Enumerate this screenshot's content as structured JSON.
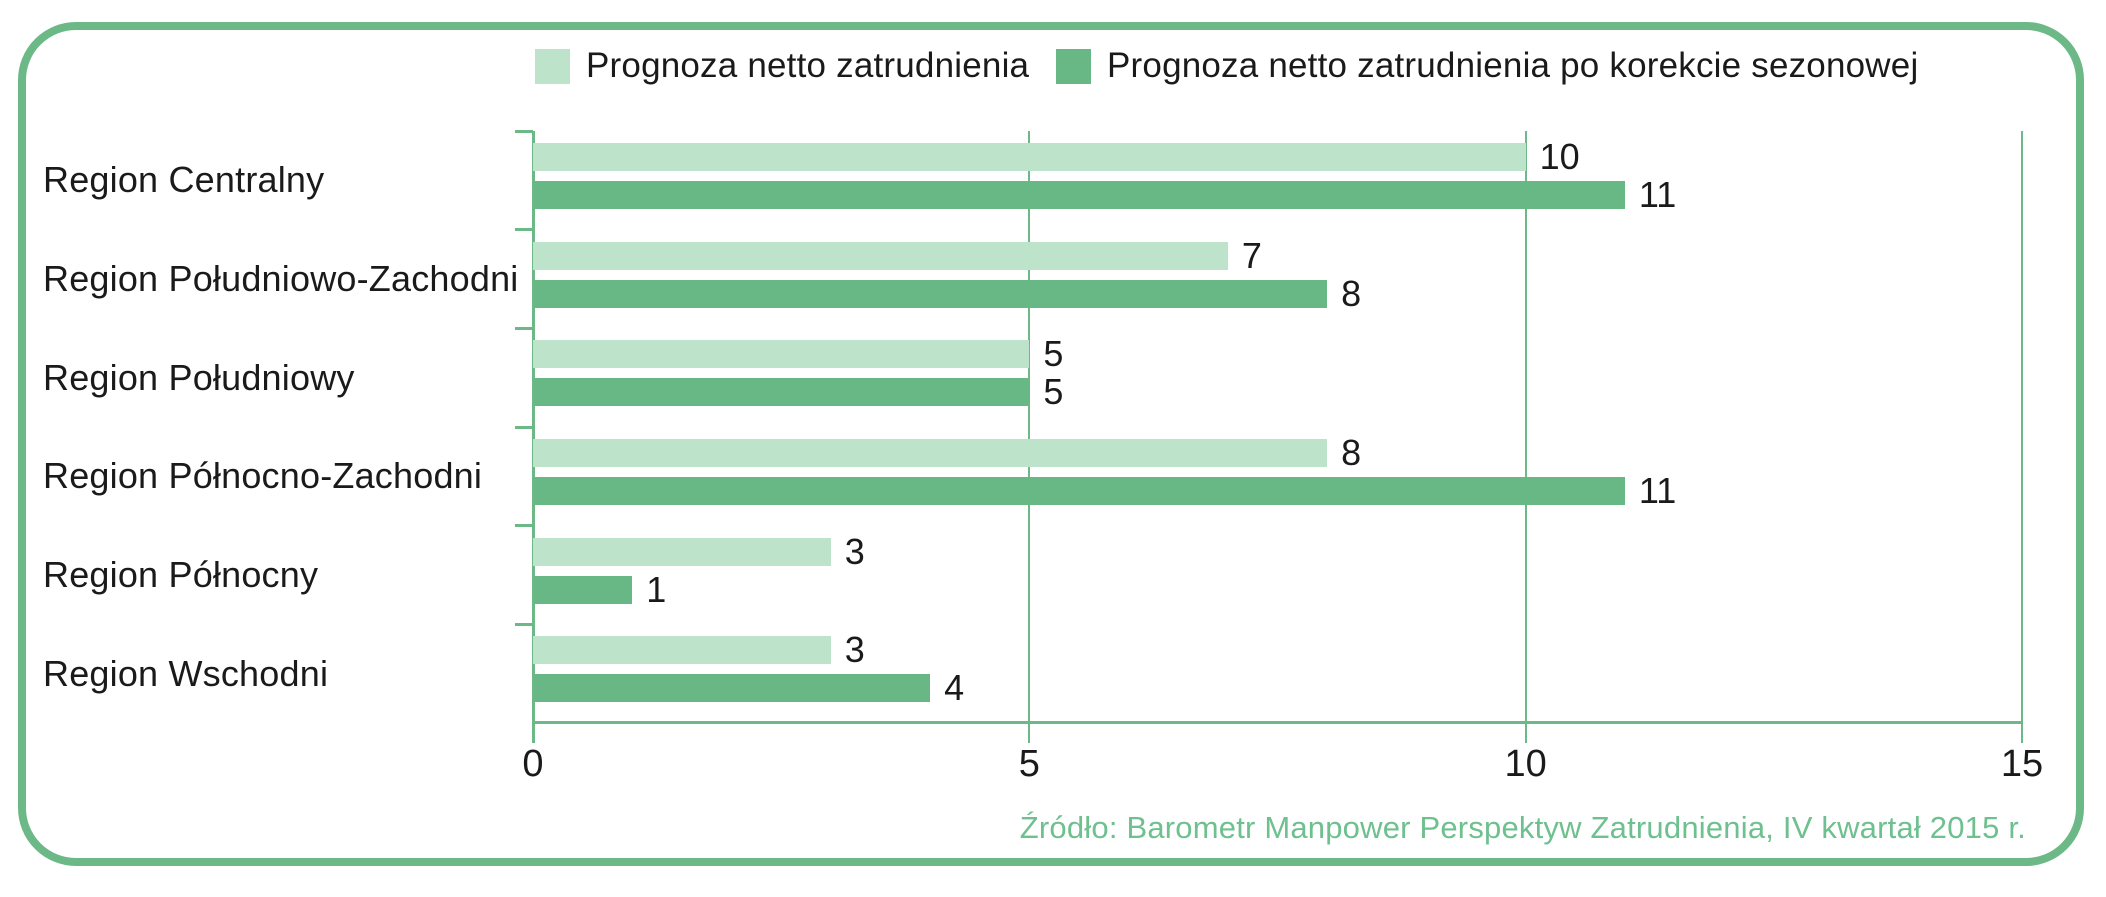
{
  "colors": {
    "frame": "#6cb987",
    "grid": "#6cb987",
    "bar_light": "#bde4ca",
    "bar_dark": "#68b885",
    "text": "#1a1a1a",
    "source_text": "#6ec08f",
    "background": "#ffffff"
  },
  "legend": {
    "items": [
      {
        "label": "Prognoza netto zatrudnienia",
        "color": "#bde4ca"
      },
      {
        "label": "Prognoza netto zatrudnienia po korekcie sezonowej",
        "color": "#68b885"
      }
    ]
  },
  "chart_data": {
    "type": "bar",
    "orientation": "horizontal",
    "title": "",
    "xlabel": "",
    "ylabel": "",
    "categories": [
      "Region Centralny",
      "Region Południowo-Zachodni",
      "Region Południowy",
      "Region Północno-Zachodni",
      "Region Północny",
      "Region Wschodni"
    ],
    "series": [
      {
        "name": "Prognoza netto zatrudnienia",
        "color": "#bde4ca",
        "values": [
          10,
          7,
          5,
          8,
          3,
          3
        ]
      },
      {
        "name": "Prognoza netto zatrudnienia po korekcie sezonowej",
        "color": "#68b885",
        "values": [
          11,
          8,
          5,
          11,
          1,
          4
        ]
      }
    ],
    "data_labels": true,
    "xlim": [
      0,
      15
    ],
    "x_ticks": [
      "0",
      "5",
      "10",
      "15"
    ],
    "grid": true,
    "legend_position": "top"
  },
  "source_note": "Źródło: Barometr Manpower Perspektyw Zatrudnienia, IV kwartał 2015 r."
}
